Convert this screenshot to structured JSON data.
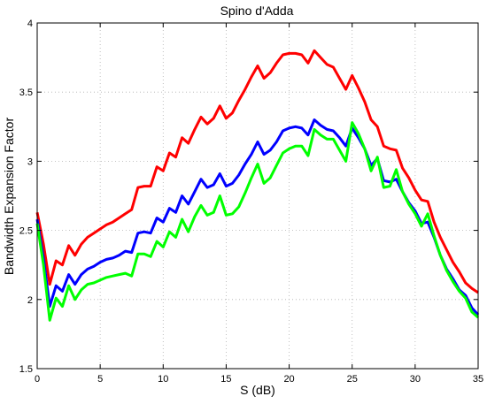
{
  "chart_data": {
    "type": "line",
    "title": "Spino d'Adda",
    "xlabel": "S (dB)",
    "ylabel": "Bandwidth Expansion Factor",
    "xlim": [
      0,
      35
    ],
    "ylim": [
      1.5,
      4
    ],
    "xticks": [
      0,
      5,
      10,
      15,
      20,
      25,
      30,
      35
    ],
    "yticks": [
      1.5,
      2,
      2.5,
      3,
      3.5,
      4
    ],
    "ytick_labels": [
      "1.5",
      "2",
      "2.5",
      "3",
      "3.5",
      "4"
    ],
    "grid": true,
    "series": [
      {
        "color": "#ff0000",
        "x": [
          0,
          0.5,
          1,
          1.5,
          2,
          2.5,
          3,
          3.5,
          4,
          4.5,
          5,
          5.5,
          6,
          6.5,
          7,
          7.5,
          8,
          8.5,
          9,
          9.5,
          10,
          10.5,
          11,
          11.5,
          12,
          12.5,
          13,
          13.5,
          14,
          14.5,
          15,
          15.5,
          16,
          16.5,
          17,
          17.5,
          18,
          18.5,
          19,
          19.5,
          20,
          20.5,
          21,
          21.5,
          22,
          22.5,
          23,
          23.5,
          24,
          24.5,
          25,
          25.5,
          26,
          26.5,
          27,
          27.5,
          28,
          28.5,
          29,
          29.5,
          30,
          30.5,
          31,
          31.5,
          32,
          32.5,
          33,
          33.5,
          34,
          34.5,
          35
        ],
        "y": [
          2.63,
          2.4,
          2.11,
          2.28,
          2.25,
          2.39,
          2.32,
          2.4,
          2.45,
          2.48,
          2.51,
          2.54,
          2.56,
          2.59,
          2.62,
          2.65,
          2.81,
          2.82,
          2.82,
          2.96,
          2.93,
          3.06,
          3.03,
          3.17,
          3.13,
          3.23,
          3.32,
          3.27,
          3.31,
          3.4,
          3.31,
          3.35,
          3.44,
          3.52,
          3.61,
          3.69,
          3.6,
          3.64,
          3.71,
          3.77,
          3.78,
          3.78,
          3.77,
          3.71,
          3.8,
          3.75,
          3.7,
          3.68,
          3.6,
          3.52,
          3.62,
          3.53,
          3.43,
          3.3,
          3.25,
          3.11,
          3.09,
          3.08,
          2.95,
          2.88,
          2.79,
          2.72,
          2.71,
          2.56,
          2.45,
          2.36,
          2.27,
          2.2,
          2.12,
          2.08,
          2.05
        ]
      },
      {
        "color": "#0000ff",
        "x": [
          0,
          0.5,
          1,
          1.5,
          2,
          2.5,
          3,
          3.5,
          4,
          4.5,
          5,
          5.5,
          6,
          6.5,
          7,
          7.5,
          8,
          8.5,
          9,
          9.5,
          10,
          10.5,
          11,
          11.5,
          12,
          12.5,
          13,
          13.5,
          14,
          14.5,
          15,
          15.5,
          16,
          16.5,
          17,
          17.5,
          18,
          18.5,
          19,
          19.5,
          20,
          20.5,
          21,
          21.5,
          22,
          22.5,
          23,
          23.5,
          24,
          24.5,
          25,
          25.5,
          26,
          26.5,
          27,
          27.5,
          28,
          28.5,
          29,
          29.5,
          30,
          30.5,
          31,
          31.5,
          32,
          32.5,
          33,
          33.5,
          34,
          34.5,
          35
        ],
        "y": [
          2.58,
          2.3,
          1.95,
          2.1,
          2.06,
          2.18,
          2.11,
          2.18,
          2.22,
          2.24,
          2.27,
          2.29,
          2.3,
          2.32,
          2.35,
          2.34,
          2.48,
          2.49,
          2.48,
          2.59,
          2.56,
          2.66,
          2.63,
          2.75,
          2.69,
          2.78,
          2.87,
          2.81,
          2.83,
          2.91,
          2.82,
          2.84,
          2.9,
          2.98,
          3.05,
          3.14,
          3.05,
          3.08,
          3.14,
          3.22,
          3.24,
          3.25,
          3.24,
          3.19,
          3.3,
          3.26,
          3.23,
          3.22,
          3.17,
          3.11,
          3.24,
          3.17,
          3.09,
          2.97,
          3.02,
          2.86,
          2.85,
          2.87,
          2.78,
          2.7,
          2.64,
          2.55,
          2.56,
          2.45,
          2.32,
          2.22,
          2.15,
          2.07,
          2.03,
          1.94,
          1.89
        ]
      },
      {
        "color": "#00ff00",
        "x": [
          0,
          0.5,
          1,
          1.5,
          2,
          2.5,
          3,
          3.5,
          4,
          4.5,
          5,
          5.5,
          6,
          6.5,
          7,
          7.5,
          8,
          8.5,
          9,
          9.5,
          10,
          10.5,
          11,
          11.5,
          12,
          12.5,
          13,
          13.5,
          14,
          14.5,
          15,
          15.5,
          16,
          16.5,
          17,
          17.5,
          18,
          18.5,
          19,
          19.5,
          20,
          20.5,
          21,
          21.5,
          22,
          22.5,
          23,
          23.5,
          24,
          24.5,
          25,
          25.5,
          26,
          26.5,
          27,
          27.5,
          28,
          28.5,
          29,
          29.5,
          30,
          30.5,
          31,
          31.5,
          32,
          32.5,
          33,
          33.5,
          34,
          34.5,
          35
        ],
        "y": [
          2.55,
          2.25,
          1.85,
          2.01,
          1.95,
          2.1,
          2.0,
          2.07,
          2.11,
          2.12,
          2.14,
          2.16,
          2.17,
          2.18,
          2.19,
          2.17,
          2.33,
          2.33,
          2.31,
          2.42,
          2.38,
          2.49,
          2.45,
          2.58,
          2.49,
          2.6,
          2.68,
          2.61,
          2.63,
          2.75,
          2.61,
          2.62,
          2.67,
          2.77,
          2.88,
          2.98,
          2.84,
          2.88,
          2.97,
          3.06,
          3.09,
          3.11,
          3.11,
          3.04,
          3.23,
          3.19,
          3.16,
          3.16,
          3.08,
          3.0,
          3.28,
          3.2,
          3.09,
          2.93,
          3.03,
          2.81,
          2.82,
          2.94,
          2.78,
          2.69,
          2.62,
          2.53,
          2.62,
          2.46,
          2.32,
          2.21,
          2.13,
          2.06,
          2.01,
          1.91,
          1.87
        ]
      }
    ]
  }
}
